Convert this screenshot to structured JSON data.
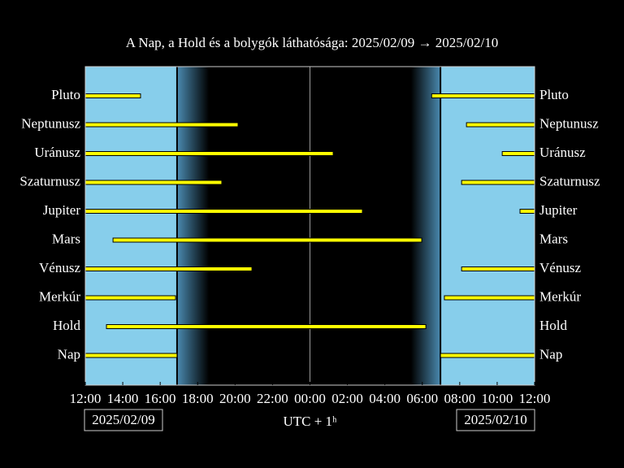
{
  "chart_data": {
    "type": "visibility",
    "title": "A Nap, a Hold és a bolygók láthatósága: 2025/02/09 → 2025/02/10",
    "x_label": "UTC + 1ʰ",
    "start_date": "2025/02/09",
    "end_date": "2025/02/10",
    "xlim": [
      0,
      24
    ],
    "xticks": [
      {
        "value": 0,
        "label": "12:00"
      },
      {
        "value": 2,
        "label": "14:00"
      },
      {
        "value": 4,
        "label": "16:00"
      },
      {
        "value": 6,
        "label": "18:00"
      },
      {
        "value": 8,
        "label": "20:00"
      },
      {
        "value": 10,
        "label": "22:00"
      },
      {
        "value": 12,
        "label": "00:00"
      },
      {
        "value": 14,
        "label": "02:00"
      },
      {
        "value": 16,
        "label": "04:00"
      },
      {
        "value": 18,
        "label": "06:00"
      },
      {
        "value": 20,
        "label": "08:00"
      },
      {
        "value": 22,
        "label": "10:00"
      },
      {
        "value": 24,
        "label": "12:00"
      }
    ],
    "midnight": 12,
    "day_color": "#87ceeb",
    "bar_color": "#ffff00",
    "twilight": [
      [
        4.9,
        6.6
      ],
      [
        17.4,
        18.97
      ]
    ],
    "rows": [
      {
        "name": "Pluto",
        "intervals": [
          [
            0,
            2.95
          ],
          [
            18.5,
            24
          ]
        ]
      },
      {
        "name": "Neptunusz",
        "intervals": [
          [
            0,
            8.16
          ],
          [
            20.36,
            24
          ]
        ]
      },
      {
        "name": "Uránusz",
        "intervals": [
          [
            0,
            13.24
          ],
          [
            22.27,
            24
          ]
        ]
      },
      {
        "name": "Szaturnusz",
        "intervals": [
          [
            0,
            7.29
          ],
          [
            20.1,
            24
          ]
        ]
      },
      {
        "name": "Jupiter",
        "intervals": [
          [
            0,
            14.8
          ],
          [
            23.22,
            24
          ]
        ]
      },
      {
        "name": "Mars",
        "intervals": [
          [
            1.48,
            17.97
          ]
        ]
      },
      {
        "name": "Vénusz",
        "intervals": [
          [
            0,
            8.9
          ],
          [
            20.1,
            24
          ]
        ]
      },
      {
        "name": "Merkúr",
        "intervals": [
          [
            0,
            4.82
          ],
          [
            19.18,
            24
          ]
        ]
      },
      {
        "name": "Hold",
        "intervals": [
          [
            1.13,
            18.19
          ]
        ]
      },
      {
        "name": "Nap",
        "intervals": [
          [
            0,
            4.9
          ],
          [
            18.97,
            24
          ]
        ]
      }
    ]
  }
}
